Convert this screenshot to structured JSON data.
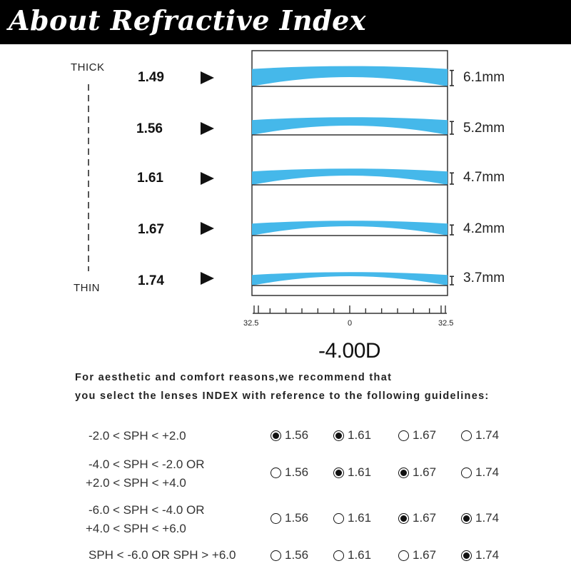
{
  "header": {
    "title": "About Refractive Index"
  },
  "scale": {
    "top_label": "THICK",
    "bottom_label": "THIN"
  },
  "lenses": [
    {
      "index": "1.49",
      "thickness": "6.1mm"
    },
    {
      "index": "1.56",
      "thickness": "5.2mm"
    },
    {
      "index": "1.61",
      "thickness": "4.7mm"
    },
    {
      "index": "1.67",
      "thickness": "4.2mm"
    },
    {
      "index": "1.74",
      "thickness": "3.7mm"
    }
  ],
  "ruler": {
    "left": "32.5",
    "center": "0",
    "right": "32.5"
  },
  "power": "-4.00D",
  "recommendation": {
    "line1": "For aesthetic and comfort reasons,we recommend that",
    "line2": "you select the lenses INDEX with reference to the following guidelines:"
  },
  "guidelines": [
    {
      "line1": "-2.0 <  SPH < +2.0",
      "line2": "",
      "options": [
        {
          "label": "1.56",
          "selected": true
        },
        {
          "label": "1.61",
          "selected": true
        },
        {
          "label": "1.67",
          "selected": false
        },
        {
          "label": "1.74",
          "selected": false
        }
      ]
    },
    {
      "line1": "-4.0 <  SPH < -2.0 OR",
      "line2": "+2.0 <  SPH < +4.0",
      "options": [
        {
          "label": "1.56",
          "selected": false
        },
        {
          "label": "1.61",
          "selected": true
        },
        {
          "label": "1.67",
          "selected": true
        },
        {
          "label": "1.74",
          "selected": false
        }
      ]
    },
    {
      "line1": "-6.0 <  SPH < -4.0 OR",
      "line2": "+4.0 <  SPH < +6.0",
      "options": [
        {
          "label": "1.56",
          "selected": false
        },
        {
          "label": "1.61",
          "selected": false
        },
        {
          "label": "1.67",
          "selected": true
        },
        {
          "label": "1.74",
          "selected": true
        }
      ]
    },
    {
      "line1": "SPH < -6.0 OR SPH > +6.0",
      "line2": "",
      "options": [
        {
          "label": "1.56",
          "selected": false
        },
        {
          "label": "1.61",
          "selected": false
        },
        {
          "label": "1.67",
          "selected": false
        },
        {
          "label": "1.74",
          "selected": true
        }
      ]
    }
  ],
  "colors": {
    "lens": "#45b8ea",
    "title_bg": "#000000",
    "title_fg": "#ffffff"
  }
}
